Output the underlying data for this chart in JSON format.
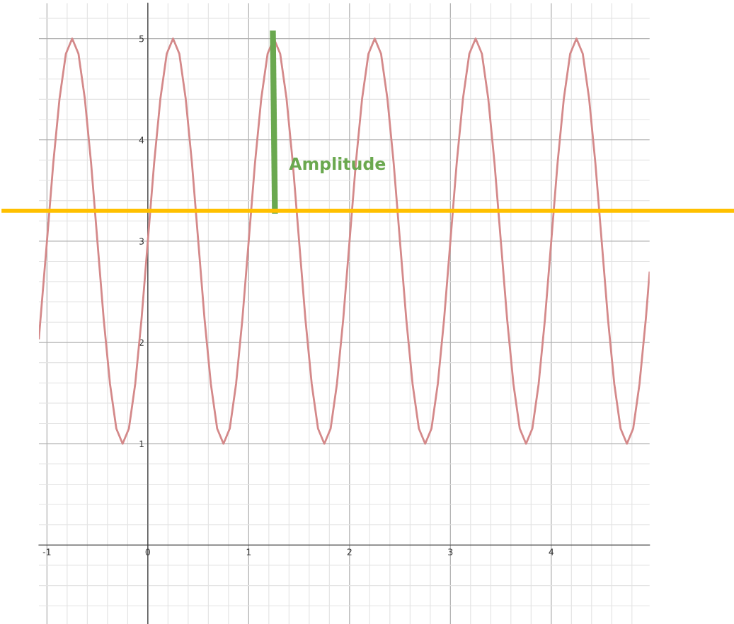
{
  "chart_data": {
    "type": "line",
    "xlim": [
      -1.08,
      4.975
    ],
    "ylim": [
      -0.78,
      5.35
    ],
    "xticks": [
      -1,
      0,
      1,
      2,
      3,
      4
    ],
    "yticks": [
      1,
      2,
      3,
      4,
      5
    ],
    "grid": true,
    "marker": "none",
    "line_style": "solid",
    "series": [
      {
        "color": "#d4898a",
        "x": [
          -1.08,
          -1,
          -0.9375,
          -0.875,
          -0.8125,
          -0.75,
          -0.6875,
          -0.625,
          -0.5625,
          -0.5,
          -0.4375,
          -0.375,
          -0.3125,
          -0.25,
          -0.1875,
          -0.125,
          -0.0625,
          0,
          0.0625,
          0.125,
          0.1875,
          0.25,
          0.3125,
          0.375,
          0.4375,
          0.5,
          0.5625,
          0.625,
          0.6875,
          0.75,
          0.8125,
          0.875,
          0.9375,
          1,
          1.0625,
          1.125,
          1.1875,
          1.25,
          1.3125,
          1.375,
          1.4375,
          1.5,
          1.5625,
          1.625,
          1.6875,
          1.75,
          1.8125,
          1.875,
          1.9375,
          2,
          2.0625,
          2.125,
          2.1875,
          2.25,
          2.3125,
          2.375,
          2.4375,
          2.5,
          2.5625,
          2.625,
          2.6875,
          2.75,
          2.8125,
          2.875,
          2.9375,
          3,
          3.0625,
          3.125,
          3.1875,
          3.25,
          3.3125,
          3.375,
          3.4375,
          3.5,
          3.5625,
          3.625,
          3.6875,
          3.75,
          3.8125,
          3.875,
          3.9375,
          4,
          4.0625,
          4.125,
          4.1875,
          4.25,
          4.3125,
          4.375,
          4.4375,
          4.5,
          4.5625,
          4.625,
          4.6875,
          4.75,
          4.8125,
          4.875,
          4.9375,
          4.975
        ],
        "values": [
          2.04,
          3,
          3.77,
          4.41,
          4.85,
          5,
          4.85,
          4.41,
          3.77,
          3,
          2.23,
          1.59,
          1.15,
          1,
          1.15,
          1.59,
          2.23,
          3,
          3.77,
          4.41,
          4.85,
          5,
          4.85,
          4.41,
          3.77,
          3,
          2.23,
          1.59,
          1.15,
          1,
          1.15,
          1.59,
          2.23,
          3,
          3.77,
          4.41,
          4.85,
          5,
          4.85,
          4.41,
          3.77,
          3,
          2.23,
          1.59,
          1.15,
          1,
          1.15,
          1.59,
          2.23,
          3,
          3.77,
          4.41,
          4.85,
          5,
          4.85,
          4.41,
          3.77,
          3,
          2.23,
          1.59,
          1.15,
          1,
          1.15,
          1.59,
          2.23,
          3,
          3.77,
          4.41,
          4.85,
          5,
          4.85,
          4.41,
          3.77,
          3,
          2.23,
          1.59,
          1.15,
          1,
          1.15,
          1.59,
          2.23,
          3,
          3.77,
          4.41,
          4.85,
          5,
          4.85,
          4.41,
          3.77,
          3,
          2.23,
          1.59,
          1.15,
          1,
          1.15,
          1.59,
          2.23,
          2.69
        ]
      },
      {
        "color": "#6aa84f",
        "x": [
          1.24,
          1.26
        ],
        "values": [
          5.05,
          3.3
        ]
      }
    ],
    "ref_lines": [
      {
        "axis": "y",
        "value": 3.3,
        "color": "#ffc000",
        "line_style": "solid"
      }
    ],
    "annotations": [
      {
        "text": "Amplitude",
        "x": 1.4,
        "y": 3.75
      }
    ]
  }
}
